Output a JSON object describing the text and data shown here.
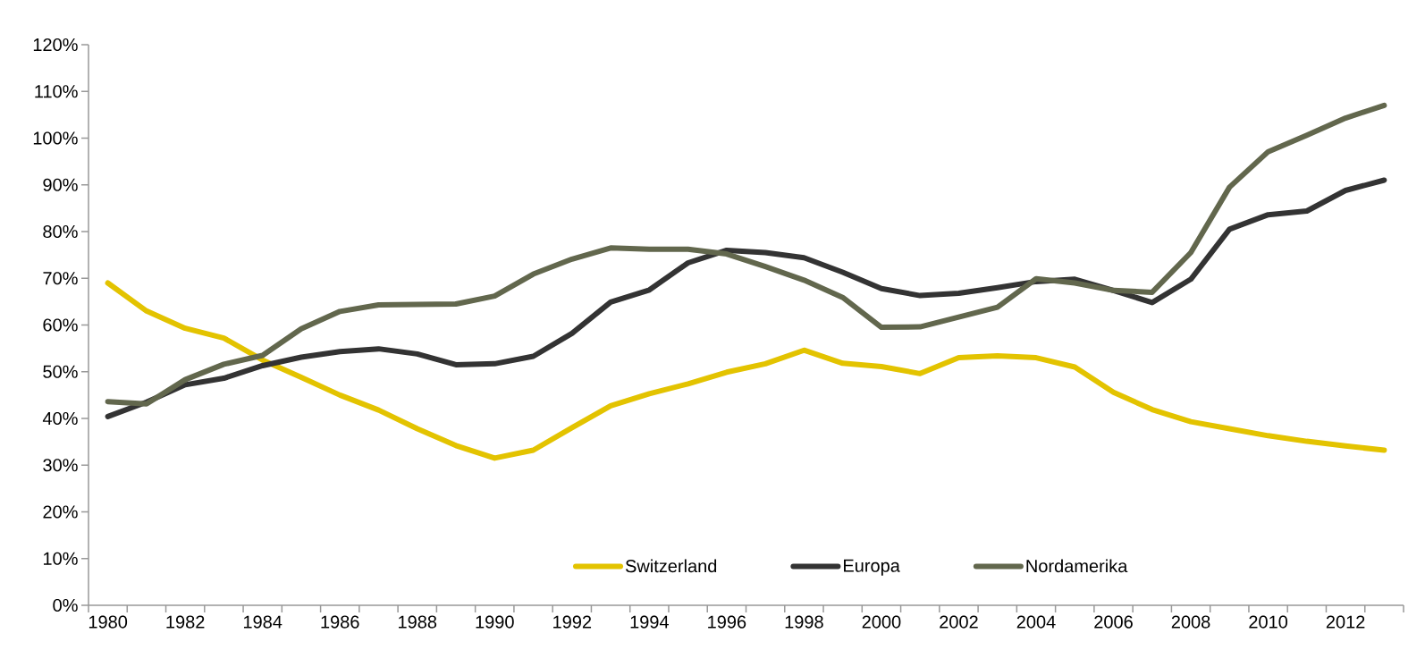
{
  "chart_data": {
    "type": "line",
    "categories": [
      "1980",
      null,
      "1982",
      null,
      "1984",
      null,
      "1986",
      null,
      "1988",
      null,
      "1990",
      null,
      "1992",
      null,
      "1994",
      null,
      "1996",
      null,
      "1998",
      null,
      "2000",
      null,
      "2002",
      null,
      "2004",
      null,
      "2006",
      null,
      "2008",
      null,
      "2010",
      null,
      "2012",
      null
    ],
    "series": [
      {
        "name": "Switzerland",
        "color": "#e3c300",
        "values": [
          69,
          63,
          59.3,
          57.2,
          52.5,
          48.8,
          45,
          41.8,
          37.8,
          34.2,
          31.5,
          33.2,
          38,
          42.7,
          45.3,
          47.4,
          49.9,
          51.7,
          54.6,
          51.8,
          51.1,
          49.6,
          53,
          53.4,
          53,
          51,
          45.6,
          41.9,
          39.3,
          37.8,
          36.3,
          35.1,
          34.1,
          33.2
        ]
      },
      {
        "name": "Europa",
        "color": "#333333",
        "values": [
          40.4,
          43.5,
          47.2,
          48.6,
          51.3,
          53.1,
          54.3,
          54.9,
          53.8,
          51.5,
          51.7,
          53.3,
          58.2,
          64.9,
          67.5,
          73.3,
          76,
          75.5,
          74.4,
          71.3,
          67.8,
          66.3,
          66.8,
          68,
          69.3,
          69.8,
          67.4,
          64.8,
          69.8,
          80.5,
          83.6,
          84.4,
          88.8,
          91
        ]
      },
      {
        "name": "Nordamerika",
        "color": "#62674d",
        "values": [
          43.6,
          43.1,
          48.3,
          51.6,
          53.5,
          59.2,
          62.9,
          64.3,
          64.4,
          64.5,
          66.2,
          70.9,
          74.1,
          76.5,
          76.2,
          76.2,
          75.2,
          72.5,
          69.6,
          65.9,
          59.5,
          59.6,
          61.7,
          63.8,
          69.9,
          69,
          67.4,
          67,
          75.5,
          89.5,
          97.1,
          100.6,
          104.3,
          107
        ]
      }
    ],
    "ylim": [
      0,
      120
    ],
    "yticks": [
      {
        "value": 0,
        "label": "0%"
      },
      {
        "value": 10,
        "label": "10%"
      },
      {
        "value": 20,
        "label": "20%"
      },
      {
        "value": 30,
        "label": "30%"
      },
      {
        "value": 40,
        "label": "40%"
      },
      {
        "value": 50,
        "label": "50%"
      },
      {
        "value": 60,
        "label": "60%"
      },
      {
        "value": 70,
        "label": "70%"
      },
      {
        "value": 80,
        "label": "80%"
      },
      {
        "value": 90,
        "label": "90%"
      },
      {
        "value": 100,
        "label": "100%"
      },
      {
        "value": 110,
        "label": "110%"
      },
      {
        "value": 120,
        "label": "120%"
      }
    ],
    "grid": false,
    "legend": "bottom",
    "marker": "none",
    "line_style": "solid"
  }
}
